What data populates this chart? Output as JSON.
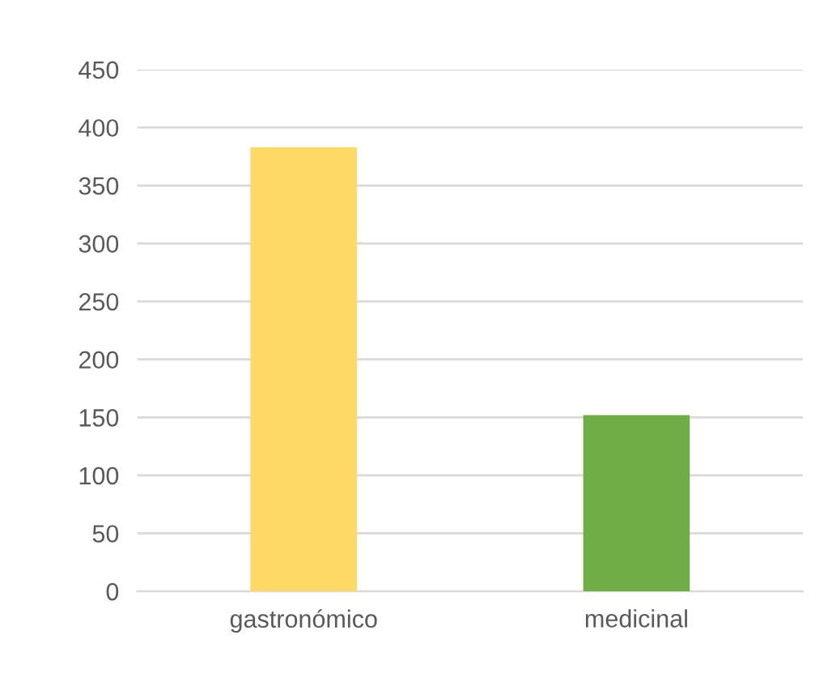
{
  "chart_data": {
    "type": "bar",
    "categories": [
      "gastronómico",
      "medicinal"
    ],
    "values": [
      383,
      152
    ],
    "colors": [
      "#ffd966",
      "#70ad47"
    ],
    "ylim": [
      0,
      450
    ],
    "yticks": [
      0,
      50,
      100,
      150,
      200,
      250,
      300,
      350,
      400,
      450
    ],
    "grid": "y",
    "legend": false
  }
}
